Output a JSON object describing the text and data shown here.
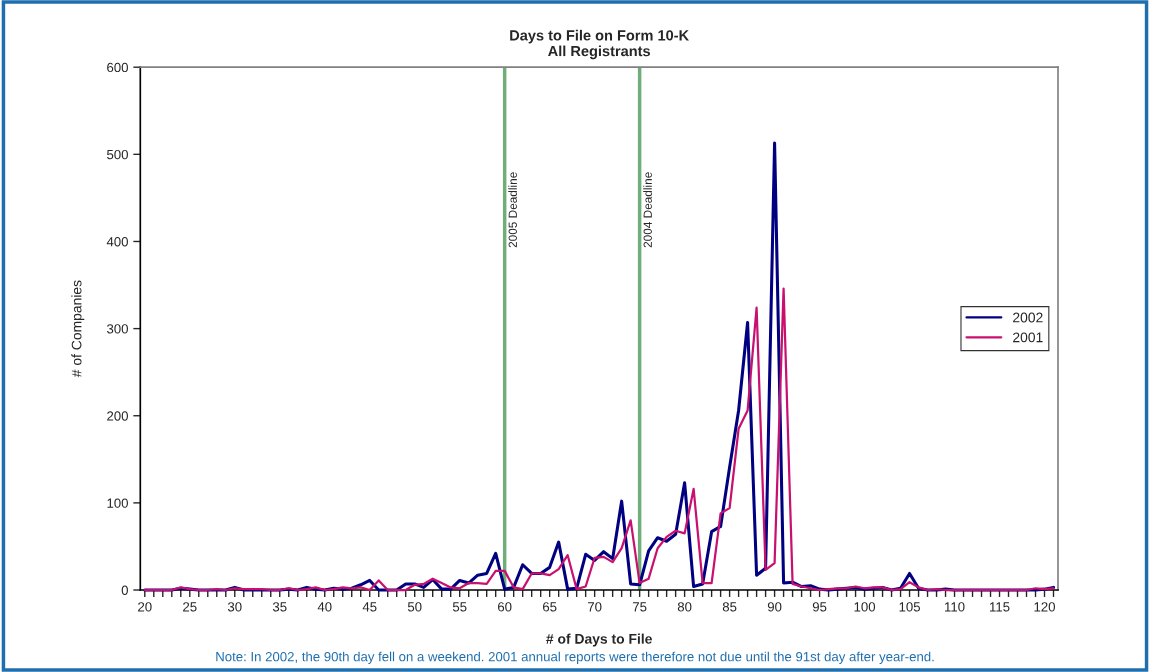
{
  "chart_data": {
    "type": "line",
    "title": "Days to File on Form 10-K\nAll Registrants",
    "xlabel": "# of Days to File",
    "ylabel": "# of Companies",
    "x": [
      20,
      21,
      22,
      23,
      24,
      25,
      26,
      27,
      28,
      29,
      30,
      31,
      32,
      33,
      34,
      35,
      36,
      37,
      38,
      39,
      40,
      41,
      42,
      43,
      44,
      45,
      46,
      47,
      48,
      49,
      50,
      51,
      52,
      53,
      54,
      55,
      56,
      57,
      58,
      59,
      60,
      61,
      62,
      63,
      64,
      65,
      66,
      67,
      68,
      69,
      70,
      71,
      72,
      73,
      74,
      75,
      76,
      77,
      78,
      79,
      80,
      81,
      82,
      83,
      84,
      85,
      86,
      87,
      88,
      89,
      90,
      91,
      92,
      93,
      94,
      95,
      96,
      97,
      98,
      99,
      100,
      101,
      102,
      103,
      104,
      105,
      106,
      107,
      108,
      109,
      110,
      111,
      112,
      113,
      114,
      115,
      116,
      117,
      118,
      119,
      120,
      121
    ],
    "series": [
      {
        "name": "2002",
        "color": "#000080",
        "values": [
          0,
          0,
          0,
          0,
          2,
          1,
          0,
          0,
          0,
          0,
          3,
          0,
          0,
          0,
          0,
          0,
          1,
          0,
          3,
          1,
          0,
          2,
          1,
          2,
          6,
          11,
          0,
          0,
          0,
          7,
          7,
          3,
          12,
          1,
          1,
          11,
          8,
          17,
          19,
          42,
          1,
          3,
          29,
          19,
          19,
          26,
          55,
          1,
          2,
          41,
          34,
          44,
          36,
          102,
          7,
          6,
          45,
          60,
          56,
          64,
          123,
          4,
          7,
          67,
          73,
          141,
          206,
          307,
          17,
          25,
          513,
          8,
          9,
          4,
          5,
          1,
          0,
          1,
          2,
          3,
          1,
          2,
          3,
          0,
          2,
          19,
          2,
          0,
          0,
          1,
          0,
          0,
          0,
          0,
          0,
          0,
          0,
          0,
          0,
          0,
          1,
          3
        ]
      },
      {
        "name": "2001",
        "color": "#c8106e",
        "values": [
          0,
          0,
          0,
          0,
          3,
          1,
          0,
          0,
          1,
          0,
          2,
          1,
          1,
          1,
          0,
          0,
          2,
          0,
          1,
          3,
          0,
          1,
          3,
          2,
          3,
          0,
          11,
          0,
          0,
          0,
          6,
          7,
          13,
          8,
          3,
          2,
          8,
          8,
          7,
          22,
          22,
          3,
          1,
          19,
          19,
          17,
          24,
          40,
          1,
          4,
          37,
          38,
          32,
          48,
          80,
          8,
          13,
          48,
          61,
          68,
          65,
          116,
          8,
          8,
          88,
          94,
          185,
          206,
          324,
          23,
          31,
          346,
          7,
          4,
          2,
          0,
          1,
          2,
          2,
          4,
          2,
          3,
          3,
          0,
          1,
          9,
          3,
          0,
          1,
          0,
          0,
          0,
          0,
          0,
          0,
          0,
          0,
          0,
          0,
          2,
          1,
          2
        ]
      }
    ],
    "xlim": [
      19.5,
      121.5
    ],
    "ylim": [
      0,
      600
    ],
    "xticks": [
      20,
      {
        "value": 21,
        "label": null
      },
      {
        "value": 22,
        "label": null
      },
      {
        "value": 23,
        "label": null
      },
      {
        "value": 24,
        "label": null
      },
      25,
      {
        "value": 26,
        "label": null
      },
      {
        "value": 27,
        "label": null
      },
      {
        "value": 28,
        "label": null
      },
      {
        "value": 29,
        "label": null
      },
      30,
      {
        "value": 31,
        "label": null
      },
      {
        "value": 32,
        "label": null
      },
      {
        "value": 33,
        "label": null
      },
      {
        "value": 34,
        "label": null
      },
      35,
      {
        "value": 36,
        "label": null
      },
      {
        "value": 37,
        "label": null
      },
      {
        "value": 38,
        "label": null
      },
      {
        "value": 39,
        "label": null
      },
      40,
      {
        "value": 41,
        "label": null
      },
      {
        "value": 42,
        "label": null
      },
      {
        "value": 43,
        "label": null
      },
      {
        "value": 44,
        "label": null
      },
      45,
      {
        "value": 46,
        "label": null
      },
      {
        "value": 47,
        "label": null
      },
      {
        "value": 48,
        "label": null
      },
      {
        "value": 49,
        "label": null
      },
      50,
      {
        "value": 51,
        "label": null
      },
      {
        "value": 52,
        "label": null
      },
      {
        "value": 53,
        "label": null
      },
      {
        "value": 54,
        "label": null
      },
      55,
      {
        "value": 56,
        "label": null
      },
      {
        "value": 57,
        "label": null
      },
      {
        "value": 58,
        "label": null
      },
      {
        "value": 59,
        "label": null
      },
      60,
      {
        "value": 61,
        "label": null
      },
      {
        "value": 62,
        "label": null
      },
      {
        "value": 63,
        "label": null
      },
      {
        "value": 64,
        "label": null
      },
      65,
      {
        "value": 66,
        "label": null
      },
      {
        "value": 67,
        "label": null
      },
      {
        "value": 68,
        "label": null
      },
      {
        "value": 69,
        "label": null
      },
      70,
      {
        "value": 71,
        "label": null
      },
      {
        "value": 72,
        "label": null
      },
      {
        "value": 73,
        "label": null
      },
      {
        "value": 74,
        "label": null
      },
      75,
      {
        "value": 76,
        "label": null
      },
      {
        "value": 77,
        "label": null
      },
      {
        "value": 78,
        "label": null
      },
      {
        "value": 79,
        "label": null
      },
      80,
      {
        "value": 81,
        "label": null
      },
      {
        "value": 82,
        "label": null
      },
      {
        "value": 83,
        "label": null
      },
      {
        "value": 84,
        "label": null
      },
      85,
      {
        "value": 86,
        "label": null
      },
      {
        "value": 87,
        "label": null
      },
      {
        "value": 88,
        "label": null
      },
      {
        "value": 89,
        "label": null
      },
      90,
      {
        "value": 91,
        "label": null
      },
      {
        "value": 92,
        "label": null
      },
      {
        "value": 93,
        "label": null
      },
      {
        "value": 94,
        "label": null
      },
      95,
      {
        "value": 96,
        "label": null
      },
      {
        "value": 97,
        "label": null
      },
      {
        "value": 98,
        "label": null
      },
      {
        "value": 99,
        "label": null
      },
      100,
      {
        "value": 101,
        "label": null
      },
      {
        "value": 102,
        "label": null
      },
      {
        "value": 103,
        "label": null
      },
      {
        "value": 104,
        "label": null
      },
      105,
      {
        "value": 106,
        "label": null
      },
      {
        "value": 107,
        "label": null
      },
      {
        "value": 108,
        "label": null
      },
      {
        "value": 109,
        "label": null
      },
      110,
      {
        "value": 111,
        "label": null
      },
      {
        "value": 112,
        "label": null
      },
      {
        "value": 113,
        "label": null
      },
      {
        "value": 114,
        "label": null
      },
      115,
      {
        "value": 116,
        "label": null
      },
      {
        "value": 117,
        "label": null
      },
      {
        "value": 118,
        "label": null
      },
      {
        "value": 119,
        "label": null
      },
      120,
      {
        "value": 121,
        "label": null
      }
    ],
    "yticks": [
      0,
      100,
      200,
      300,
      400,
      500,
      600
    ],
    "ref_lines": [
      {
        "axis": "x",
        "value": 60,
        "label": "2005 Deadline",
        "color": "#6fae7a"
      },
      {
        "axis": "x",
        "value": 75,
        "label": "2004 Deadline",
        "color": "#6fae7a"
      }
    ],
    "annotations": [
      "Note: In 2002, the 90th day fell on a weekend. 2001 annual reports were therefore not due until the 91st day after year-end."
    ],
    "grid": false,
    "legend": "right",
    "marker": "none",
    "line_style": "solid"
  }
}
